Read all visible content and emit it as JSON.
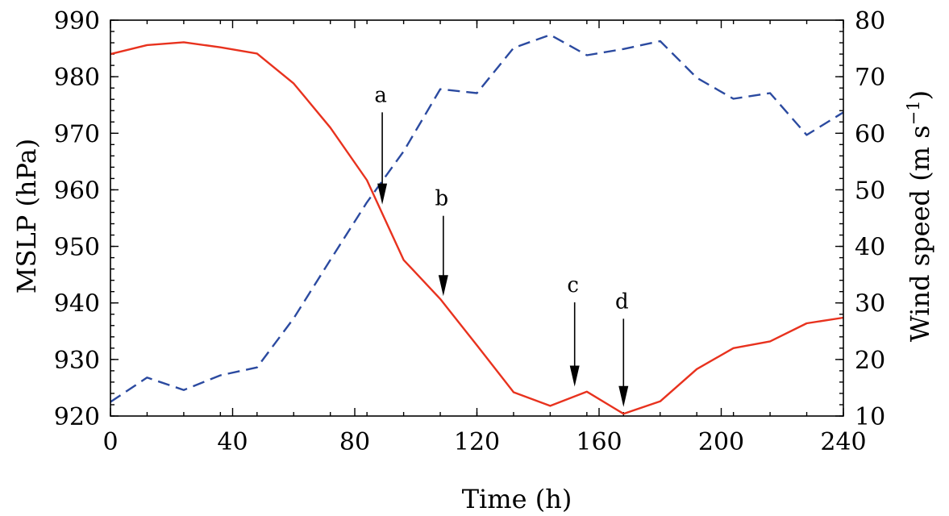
{
  "chart_data": {
    "type": "line",
    "title": "",
    "xlabel": "Time (h)",
    "ylabel_left": "MSLP (hPa)",
    "ylabel_right": "Wind speed (m s",
    "ylabel_right_sup": "−1",
    "ylabel_right_close": ")",
    "xlim": [
      0,
      240
    ],
    "ylim_left": [
      920,
      990
    ],
    "ylim_right": [
      10,
      80
    ],
    "x_ticks": [
      0,
      40,
      80,
      120,
      160,
      200,
      240
    ],
    "x_tick_labels": [
      "0",
      "40",
      "80",
      "120",
      "160",
      "200",
      "240"
    ],
    "y_left_ticks": [
      920,
      930,
      940,
      950,
      960,
      970,
      980,
      990
    ],
    "y_left_tick_labels": [
      "920",
      "930",
      "940",
      "950",
      "960",
      "970",
      "980",
      "990"
    ],
    "y_right_ticks": [
      10,
      20,
      30,
      40,
      50,
      60,
      70,
      80
    ],
    "y_right_tick_labels": [
      "10",
      "20",
      "30",
      "40",
      "50",
      "60",
      "70",
      "80"
    ],
    "grid": false,
    "series": [
      {
        "name": "MSLP",
        "axis": "left",
        "color": "#e8321e",
        "style": "solid",
        "x": [
          0,
          12,
          24,
          36,
          48,
          60,
          72,
          84,
          96,
          108,
          120,
          132,
          144,
          156,
          168,
          180,
          192,
          204,
          216,
          228,
          240
        ],
        "values": [
          984,
          985.6,
          986.1,
          985.2,
          984.1,
          978.8,
          971,
          961.7,
          947.6,
          940.7,
          932.5,
          924.2,
          921.8,
          924.3,
          920.4,
          922.6,
          928.3,
          932,
          933.2,
          936.4,
          937.4
        ]
      },
      {
        "name": "Wind speed",
        "axis": "right",
        "color": "#2b4aa0",
        "style": "dashed",
        "x": [
          0,
          12,
          24,
          36,
          48,
          60,
          72,
          84,
          96,
          108,
          120,
          132,
          144,
          156,
          168,
          180,
          192,
          204,
          216,
          228,
          240
        ],
        "values": [
          12.5,
          16.8,
          14.6,
          17.2,
          18.6,
          27.3,
          37.6,
          47.8,
          56.8,
          67.8,
          67.1,
          75.1,
          77.4,
          73.8,
          74.9,
          76.3,
          69.8,
          66.1,
          67.1,
          59.7,
          63.7
        ]
      }
    ],
    "annotations": [
      {
        "label": "a",
        "x": 89,
        "arrow_top_hpa": 973.7,
        "arrow_tip_hpa": 957.4
      },
      {
        "label": "b",
        "x": 109,
        "arrow_top_hpa": 955.4,
        "arrow_tip_hpa": 941.2
      },
      {
        "label": "c",
        "x": 152,
        "arrow_top_hpa": 940.1,
        "arrow_tip_hpa": 925.2
      },
      {
        "label": "d",
        "x": 168,
        "arrow_top_hpa": 937.2,
        "arrow_tip_hpa": 921.6
      }
    ]
  }
}
